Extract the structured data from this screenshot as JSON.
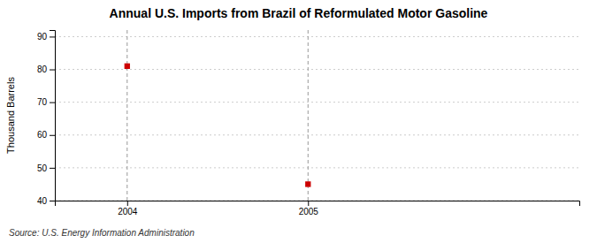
{
  "chart_data": {
    "type": "scatter",
    "title": "Annual U.S. Imports from Brazil of Reformulated Motor Gasoline",
    "ylabel": "Thousand Barrels",
    "source": "Source: U.S. Energy Information Administration",
    "x": [
      2004,
      2005
    ],
    "values": [
      81,
      45
    ],
    "color": "#cc0000",
    "marker": "square",
    "xlim": [
      2003.6,
      2006.5
    ],
    "ylim": [
      40,
      92
    ],
    "xticks": [
      2004,
      2005
    ],
    "yticks": [
      40,
      50,
      60,
      70,
      80,
      90
    ],
    "grid": true
  }
}
